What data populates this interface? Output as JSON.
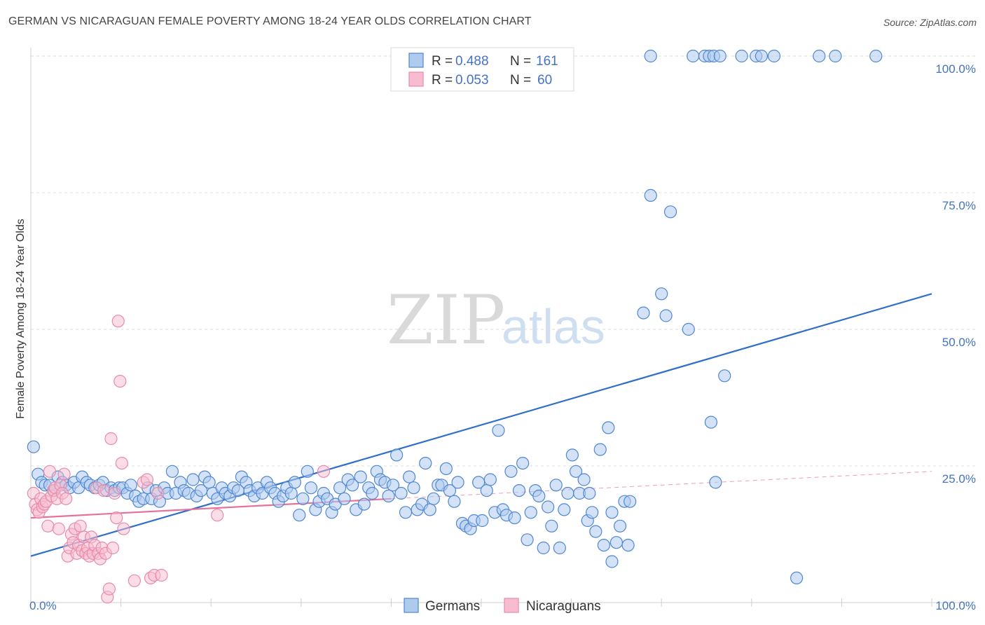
{
  "title": "GERMAN VS NICARAGUAN FEMALE POVERTY AMONG 18-24 YEAR OLDS CORRELATION CHART",
  "source": "Source: ZipAtlas.com",
  "watermark": {
    "zip": "ZIP",
    "atlas": "atlas"
  },
  "legend": {
    "r_label": "R =",
    "n_label": "N =",
    "germans": {
      "r": "0.488",
      "n": "161"
    },
    "nicaraguans": {
      "r": "0.053",
      "n": "60"
    }
  },
  "colors": {
    "germans_fill": "#aecbee",
    "germans_stroke": "#4f87d1",
    "germans_line": "#2f6fc7",
    "nicaraguans_fill": "#f7bcd0",
    "nicaraguans_stroke": "#e88aaa",
    "nicaraguans_line": "#e8719b",
    "axis_text": "#4472c4"
  },
  "chart_data": {
    "type": "scatter",
    "title": "GERMAN VS NICARAGUAN FEMALE POVERTY AMONG 18-24 YEAR OLDS CORRELATION CHART",
    "xlabel": "",
    "ylabel": "Female Poverty Among 18-24 Year Olds",
    "xlim": [
      0,
      100
    ],
    "ylim": [
      0,
      100
    ],
    "x_tick_labels": [
      "0.0%",
      "100.0%"
    ],
    "y_tick_labels": [
      "25.0%",
      "50.0%",
      "75.0%",
      "100.0%"
    ],
    "y_ticks": [
      25,
      50,
      75,
      100
    ],
    "grid": true,
    "legend_position": "top-center",
    "series": [
      {
        "name": "Germans",
        "trend": {
          "x": [
            0,
            100
          ],
          "y": [
            8.5,
            56.5
          ]
        },
        "points": [
          [
            0.3,
            28.5
          ],
          [
            0.8,
            23.5
          ],
          [
            1.2,
            22
          ],
          [
            1.6,
            21.5
          ],
          [
            2.1,
            21.5
          ],
          [
            2.6,
            20.5
          ],
          [
            3.0,
            23
          ],
          [
            3.5,
            22
          ],
          [
            3.9,
            21.5
          ],
          [
            4.3,
            21
          ],
          [
            4.8,
            22
          ],
          [
            5.3,
            21
          ],
          [
            5.7,
            23
          ],
          [
            6.2,
            22
          ],
          [
            6.6,
            21.5
          ],
          [
            7.1,
            21
          ],
          [
            7.6,
            21.5
          ],
          [
            8.0,
            22
          ],
          [
            8.4,
            20.5
          ],
          [
            8.9,
            21
          ],
          [
            9.3,
            20.5
          ],
          [
            9.8,
            21
          ],
          [
            10.2,
            21
          ],
          [
            10.7,
            20
          ],
          [
            11.1,
            21.5
          ],
          [
            11.6,
            19.5
          ],
          [
            12.0,
            18.5
          ],
          [
            12.5,
            19
          ],
          [
            13.0,
            21
          ],
          [
            13.4,
            19
          ],
          [
            13.9,
            20.5
          ],
          [
            14.3,
            18.5
          ],
          [
            14.8,
            21
          ],
          [
            15.2,
            20
          ],
          [
            15.7,
            24
          ],
          [
            16.1,
            20
          ],
          [
            16.6,
            22
          ],
          [
            17.0,
            20.5
          ],
          [
            17.5,
            20
          ],
          [
            18.0,
            22.5
          ],
          [
            18.4,
            19.5
          ],
          [
            18.9,
            20.5
          ],
          [
            19.3,
            23
          ],
          [
            19.8,
            22
          ],
          [
            20.2,
            20
          ],
          [
            20.7,
            19
          ],
          [
            21.2,
            21
          ],
          [
            21.6,
            20
          ],
          [
            22.1,
            19.5
          ],
          [
            22.5,
            21
          ],
          [
            23.0,
            20.5
          ],
          [
            23.4,
            23
          ],
          [
            23.9,
            22
          ],
          [
            24.3,
            20.5
          ],
          [
            24.8,
            19.5
          ],
          [
            25.2,
            21
          ],
          [
            25.7,
            20
          ],
          [
            26.2,
            22
          ],
          [
            26.6,
            21
          ],
          [
            27.1,
            20
          ],
          [
            27.5,
            18.5
          ],
          [
            28.0,
            19.5
          ],
          [
            28.4,
            21
          ],
          [
            28.9,
            20
          ],
          [
            29.3,
            22
          ],
          [
            29.8,
            16
          ],
          [
            30.2,
            19
          ],
          [
            30.7,
            24
          ],
          [
            31.1,
            21
          ],
          [
            31.6,
            17
          ],
          [
            32.0,
            18.5
          ],
          [
            32.5,
            20
          ],
          [
            32.9,
            19
          ],
          [
            33.4,
            16.5
          ],
          [
            33.8,
            18
          ],
          [
            34.3,
            21
          ],
          [
            34.8,
            19
          ],
          [
            35.2,
            22.5
          ],
          [
            35.7,
            21.5
          ],
          [
            36.1,
            17
          ],
          [
            36.6,
            23
          ],
          [
            37.0,
            18
          ],
          [
            37.5,
            21
          ],
          [
            37.9,
            20
          ],
          [
            38.4,
            24
          ],
          [
            38.8,
            22.5
          ],
          [
            39.3,
            22
          ],
          [
            39.7,
            19.5
          ],
          [
            40.2,
            21.5
          ],
          [
            40.6,
            27
          ],
          [
            41.1,
            20
          ],
          [
            41.6,
            16.5
          ],
          [
            42.0,
            23
          ],
          [
            42.5,
            21
          ],
          [
            42.9,
            17
          ],
          [
            43.4,
            18
          ],
          [
            43.8,
            25.5
          ],
          [
            44.3,
            17
          ],
          [
            44.7,
            19
          ],
          [
            45.2,
            21.5
          ],
          [
            45.6,
            21.5
          ],
          [
            46.1,
            24.5
          ],
          [
            46.5,
            20.5
          ],
          [
            47.0,
            18.5
          ],
          [
            47.4,
            22
          ],
          [
            47.9,
            14.5
          ],
          [
            48.3,
            14
          ],
          [
            48.8,
            13.5
          ],
          [
            49.2,
            15
          ],
          [
            49.7,
            22
          ],
          [
            50.1,
            15
          ],
          [
            50.6,
            20.5
          ],
          [
            51.0,
            22.5
          ],
          [
            51.5,
            16.5
          ],
          [
            51.9,
            31.5
          ],
          [
            52.4,
            17
          ],
          [
            52.8,
            16
          ],
          [
            53.3,
            24
          ],
          [
            53.7,
            15.5
          ],
          [
            54.2,
            20.5
          ],
          [
            54.6,
            25.5
          ],
          [
            55.1,
            11.5
          ],
          [
            55.5,
            16.5
          ],
          [
            56.0,
            20.5
          ],
          [
            56.4,
            19.5
          ],
          [
            56.9,
            10
          ],
          [
            57.4,
            17.5
          ],
          [
            57.8,
            14
          ],
          [
            58.3,
            21.5
          ],
          [
            58.7,
            10
          ],
          [
            59.2,
            17
          ],
          [
            59.6,
            20
          ],
          [
            60.1,
            27
          ],
          [
            60.5,
            24
          ],
          [
            60.9,
            20
          ],
          [
            61.4,
            22.5
          ],
          [
            61.8,
            15
          ],
          [
            62.3,
            16.5
          ],
          [
            62.7,
            13
          ],
          [
            63.2,
            28
          ],
          [
            63.6,
            10.5
          ],
          [
            64.1,
            32
          ],
          [
            64.5,
            7.5
          ],
          [
            65.0,
            11
          ],
          [
            65.4,
            14
          ],
          [
            65.9,
            18.5
          ],
          [
            66.3,
            10.5
          ],
          [
            68.8,
            74.5
          ],
          [
            71.0,
            71.5
          ],
          [
            68.0,
            53
          ],
          [
            70.0,
            56.5
          ],
          [
            73.0,
            50
          ],
          [
            70.5,
            52.5
          ],
          [
            75.5,
            33
          ],
          [
            77.0,
            41.5
          ],
          [
            85.0,
            4.5
          ],
          [
            76.0,
            22
          ],
          [
            66.5,
            18.5
          ],
          [
            64.5,
            16.5
          ],
          [
            62.0,
            20
          ]
        ],
        "top_points_x": [
          68.8,
          73.5,
          74.8,
          75.3,
          75.8,
          76.5,
          78.9,
          80.5,
          81.1,
          82.5,
          87.5,
          89.3,
          93.8
        ]
      },
      {
        "name": "Nicaraguans",
        "trend": {
          "x": [
            0,
            40
          ],
          "y": [
            15.5,
            19
          ]
        },
        "trend_extended": {
          "x": [
            40,
            100
          ],
          "y": [
            19,
            24
          ]
        },
        "points": [
          [
            0.3,
            20
          ],
          [
            0.5,
            18
          ],
          [
            0.7,
            17
          ],
          [
            0.9,
            16.5
          ],
          [
            1.1,
            19
          ],
          [
            1.3,
            17.5
          ],
          [
            1.5,
            18
          ],
          [
            1.7,
            18.5
          ],
          [
            1.9,
            14
          ],
          [
            2.1,
            24
          ],
          [
            2.3,
            19.5
          ],
          [
            2.5,
            20.5
          ],
          [
            2.7,
            21
          ],
          [
            2.9,
            19
          ],
          [
            3.1,
            13.5
          ],
          [
            3.3,
            21.5
          ],
          [
            3.5,
            20
          ],
          [
            3.7,
            23.5
          ],
          [
            3.9,
            19
          ],
          [
            4.1,
            8.5
          ],
          [
            4.3,
            10
          ],
          [
            4.5,
            12.5
          ],
          [
            4.7,
            11
          ],
          [
            4.9,
            13.5
          ],
          [
            5.1,
            9
          ],
          [
            5.3,
            10.5
          ],
          [
            5.5,
            14
          ],
          [
            5.7,
            9.5
          ],
          [
            5.9,
            12
          ],
          [
            6.1,
            9
          ],
          [
            6.3,
            10
          ],
          [
            6.5,
            8.5
          ],
          [
            6.7,
            12
          ],
          [
            6.9,
            9
          ],
          [
            7.1,
            10.5
          ],
          [
            7.3,
            21
          ],
          [
            7.5,
            9
          ],
          [
            7.7,
            8
          ],
          [
            7.9,
            10
          ],
          [
            8.1,
            20.5
          ],
          [
            8.3,
            9
          ],
          [
            8.5,
            1
          ],
          [
            8.7,
            2.5
          ],
          [
            8.9,
            30
          ],
          [
            9.1,
            10
          ],
          [
            9.3,
            20
          ],
          [
            9.5,
            15.5
          ],
          [
            9.7,
            51.5
          ],
          [
            9.9,
            40.5
          ],
          [
            10.1,
            25.5
          ],
          [
            10.3,
            13.5
          ],
          [
            11.5,
            4
          ],
          [
            12.5,
            22
          ],
          [
            12.9,
            22.5
          ],
          [
            13.3,
            4.5
          ],
          [
            13.7,
            5
          ],
          [
            14.1,
            20
          ],
          [
            14.5,
            5
          ],
          [
            20.7,
            16
          ],
          [
            32.5,
            24
          ]
        ]
      }
    ]
  },
  "bottom_legend": {
    "germans": "Germans",
    "nicaraguans": "Nicaraguans"
  }
}
